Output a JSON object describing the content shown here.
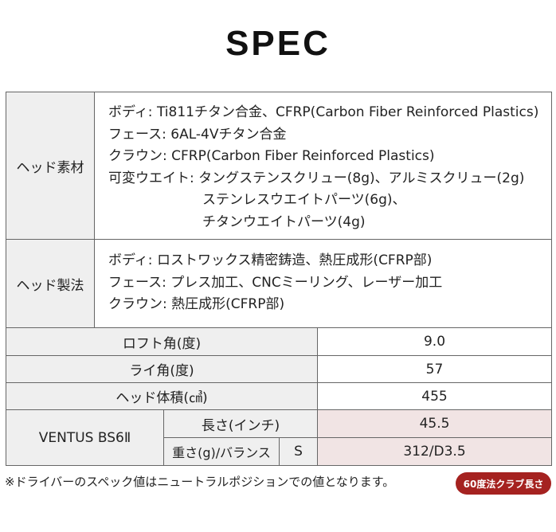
{
  "title": "SPEC",
  "head_material": {
    "label": "ヘッド素材",
    "lines": [
      "ボディ: Ti811チタン合金、CFRP(Carbon Fiber Reinforced Plastics)",
      "フェース: 6AL-4Vチタン合金",
      "クラウン: CFRP(Carbon Fiber Reinforced Plastics)",
      "可変ウエイト: タングステンスクリュー(8g)、アルミスクリュー(2g)",
      "ステンレスウエイトパーツ(6g)、",
      "チタンウエイトパーツ(4g)"
    ]
  },
  "head_method": {
    "label": "ヘッド製法",
    "lines": [
      "ボディ: ロストワックス精密鋳造、熱圧成形(CFRP部)",
      "フェース: プレス加工、CNCミーリング、レーザー加工",
      "クラウン: 熱圧成形(CFRP部)"
    ]
  },
  "specs": [
    {
      "label": "ロフト角(度)",
      "value": "9.0"
    },
    {
      "label": "ライ角(度)",
      "value": "57"
    },
    {
      "label": "ヘッド体積(㎤)",
      "value": "455"
    }
  ],
  "shaft": {
    "name": "VENTUS BS6Ⅱ",
    "length_label": "長さ(インチ)",
    "length_value": "45.5",
    "weight_label": "重さ(g)/バランス",
    "flex": "S",
    "weight_value": "312/D3.5"
  },
  "note": "※ドライバーのスペック値はニュートラルポジションでの値となります。",
  "badge": "60度法クラブ長さ",
  "colors": {
    "badge": "#a52220",
    "highlight": "#f1e4e4",
    "label_bg": "#efefef"
  }
}
